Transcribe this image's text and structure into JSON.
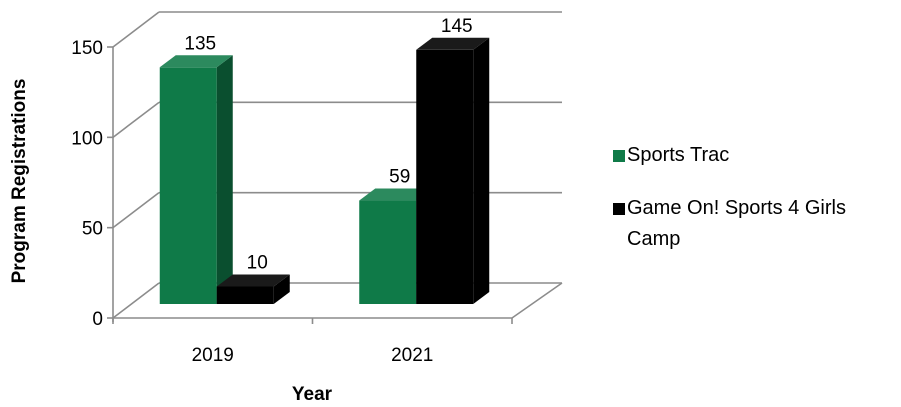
{
  "chart_data": {
    "type": "bar",
    "style": "3d-clustered-column",
    "categories": [
      "2019",
      "2021"
    ],
    "series": [
      {
        "name": "Sports Trac",
        "values": [
          135,
          59
        ],
        "color": "#0f7a48"
      },
      {
        "name": "Game On! Sports 4 Girls Camp",
        "values": [
          10,
          145
        ],
        "color": "#000000"
      }
    ],
    "xlabel": "Year",
    "ylabel": "Program Registrations",
    "ylim": [
      0,
      150
    ],
    "yticks": [
      0,
      50,
      100,
      150
    ],
    "grid": true,
    "legend_position": "right"
  }
}
